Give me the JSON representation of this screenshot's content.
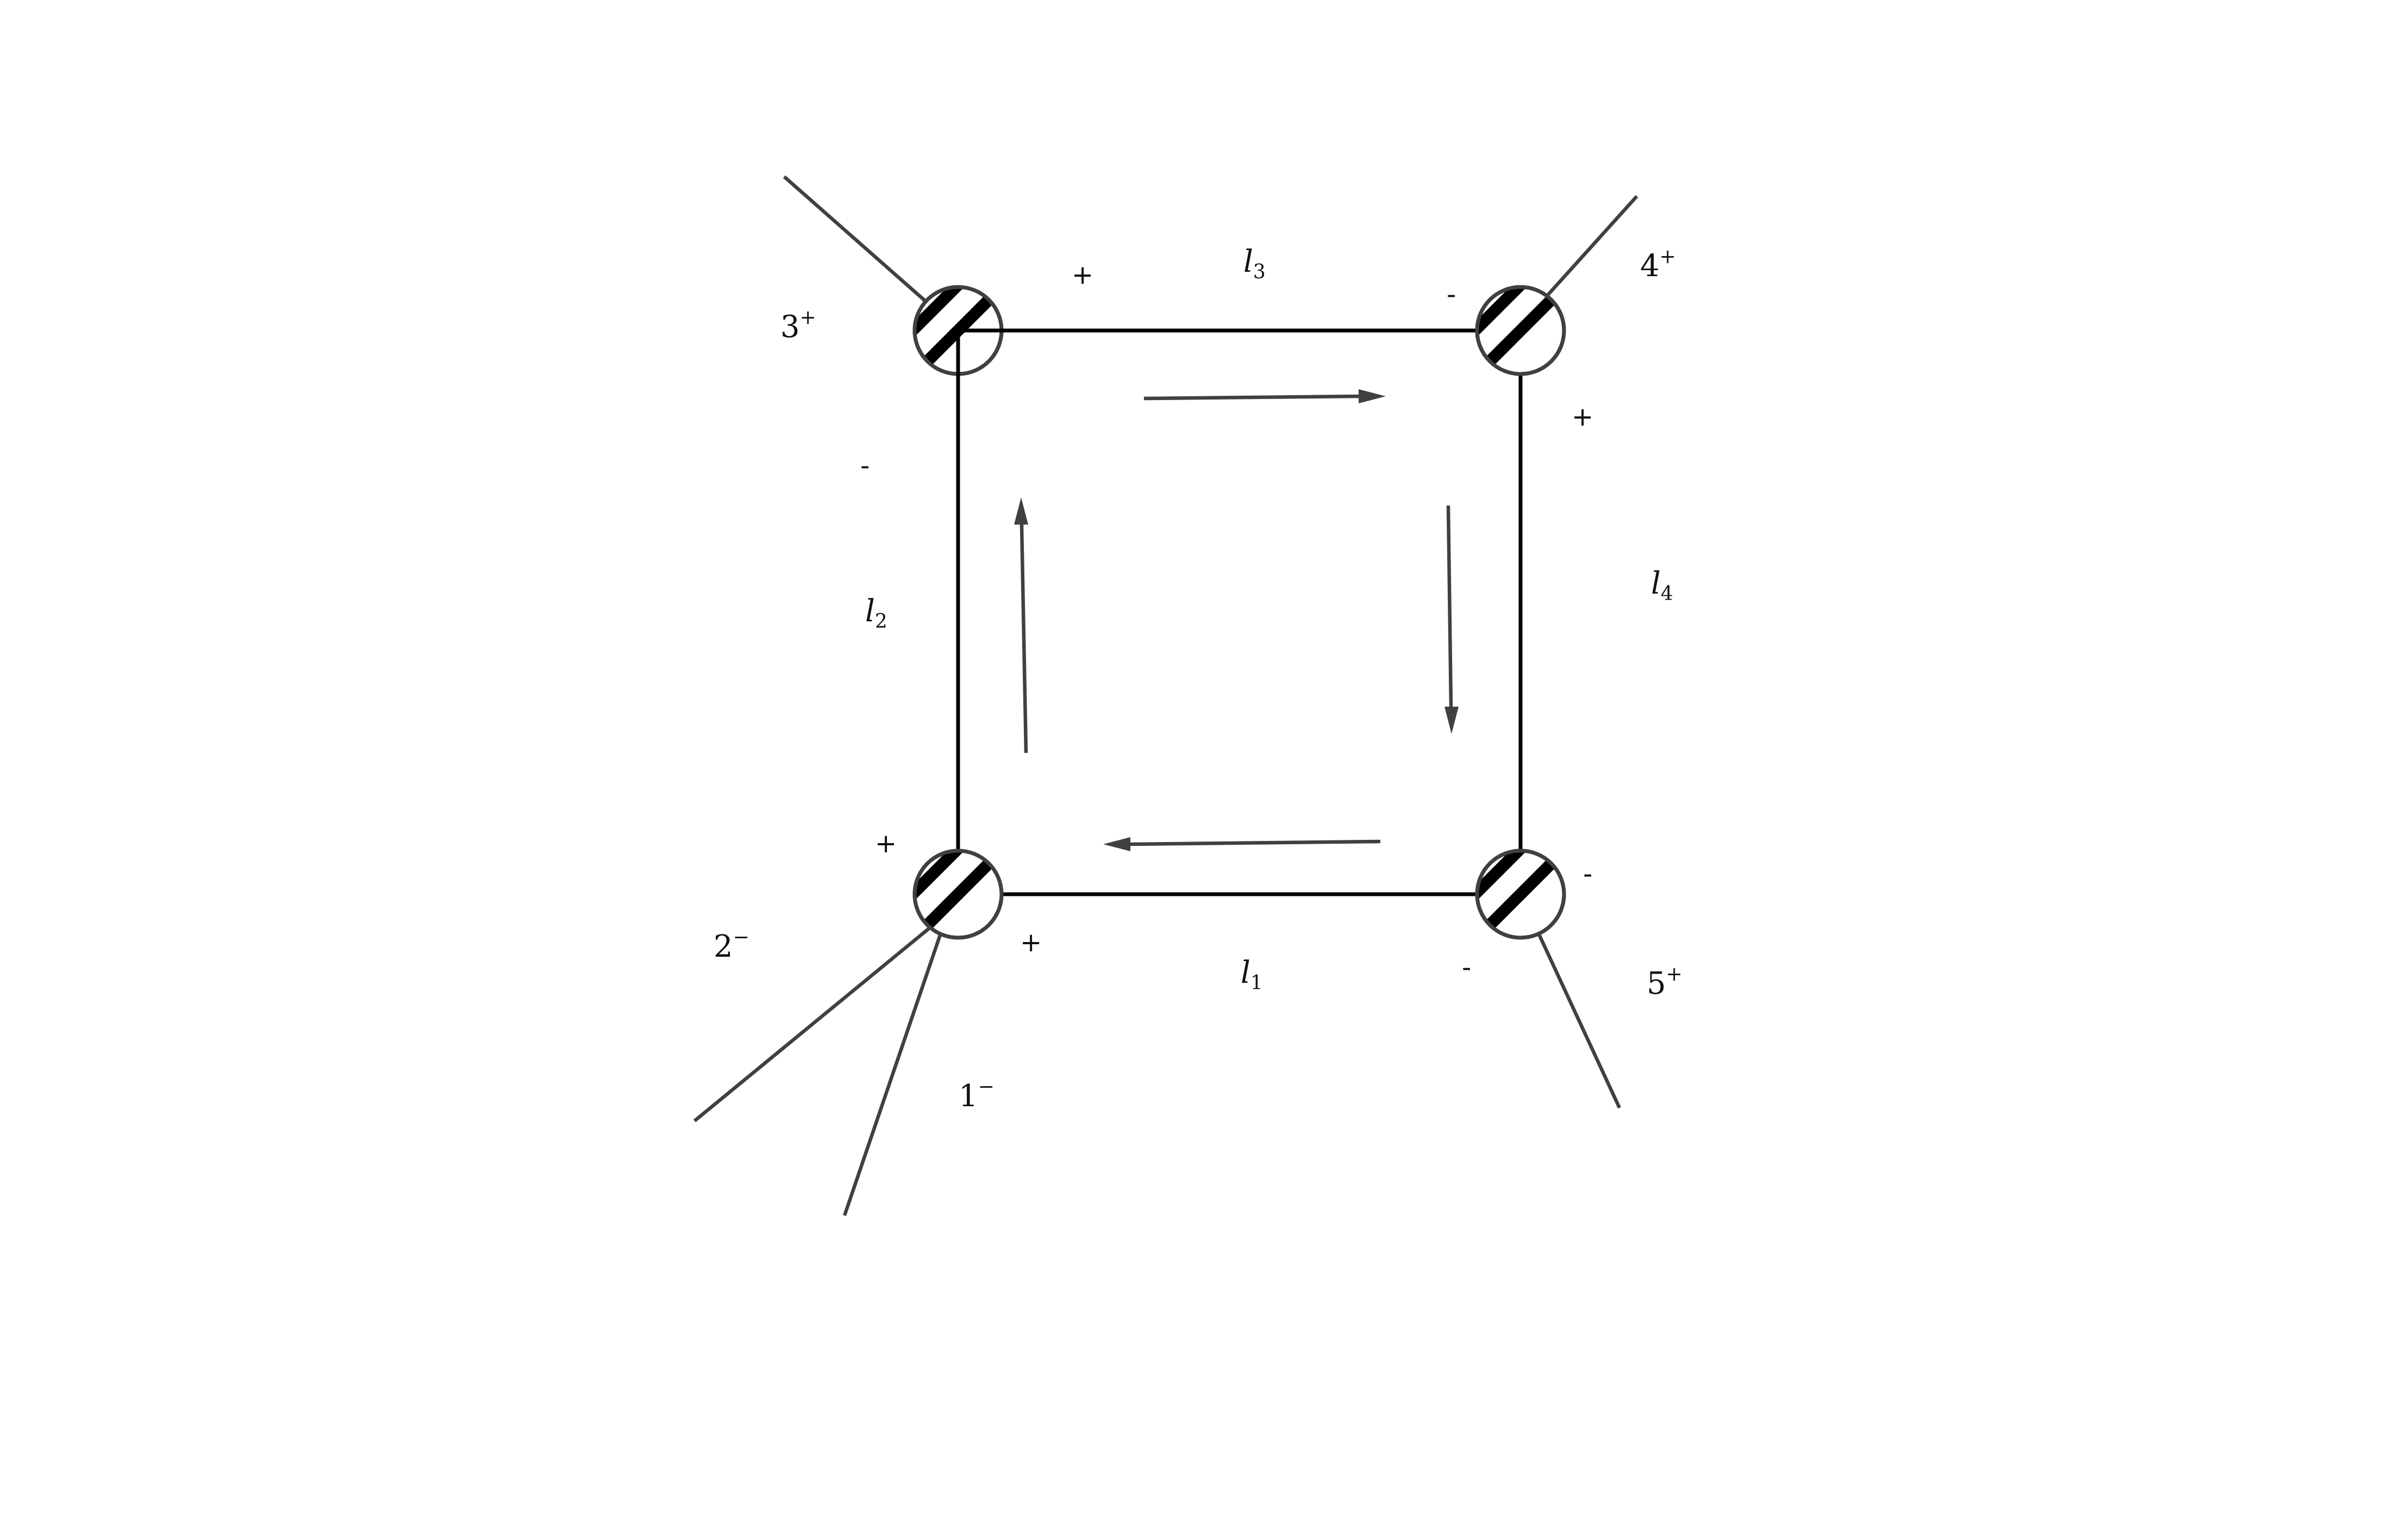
{
  "diagram": {
    "loop_momenta": [
      {
        "id": "l1",
        "base": "l",
        "sub": "1"
      },
      {
        "id": "l2",
        "base": "l",
        "sub": "2"
      },
      {
        "id": "l3",
        "base": "l",
        "sub": "3"
      },
      {
        "id": "l4",
        "base": "l",
        "sub": "4"
      }
    ],
    "external_legs": [
      {
        "id": "leg1",
        "number": "1",
        "helicity": "−"
      },
      {
        "id": "leg2",
        "number": "2",
        "helicity": "−"
      },
      {
        "id": "leg3",
        "number": "3",
        "helicity": "+"
      },
      {
        "id": "leg4",
        "number": "4",
        "helicity": "+"
      },
      {
        "id": "leg5",
        "number": "5",
        "helicity": "+"
      }
    ],
    "internal_helicities": {
      "top_left_right": "+",
      "top_left_below": "-",
      "top_right_left": "-",
      "top_right_below": "+",
      "bottom_left_above": "+",
      "bottom_left_right": "+",
      "bottom_right_left": "-",
      "bottom_right_right": "-"
    },
    "loop_direction": "clockwise"
  }
}
